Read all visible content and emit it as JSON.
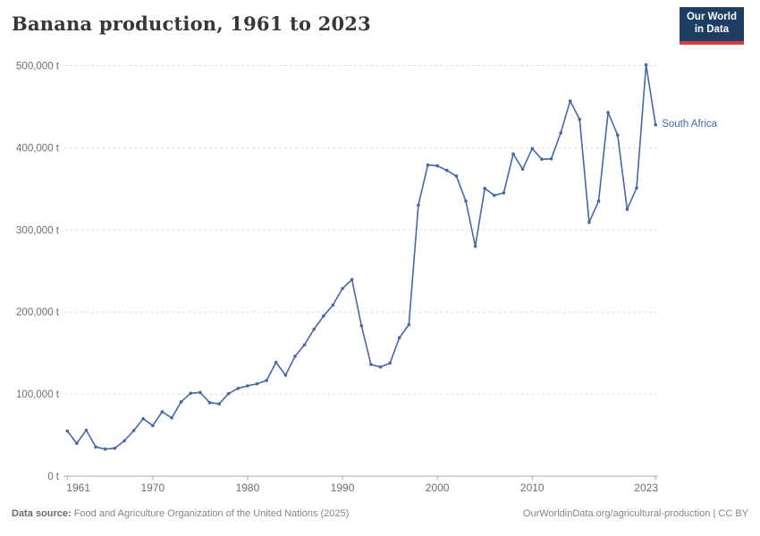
{
  "header": {
    "title": "Banana production, 1961 to 2023"
  },
  "logo": {
    "line1": "Our World",
    "line2": "in Data",
    "bg_color": "#1d3d63",
    "bar_color": "#d73c3c"
  },
  "chart_data": {
    "type": "line",
    "title": "Banana production, 1961 to 2023",
    "entity": "South Africa",
    "unit": "t",
    "line_color": "#4668a8",
    "grid": "horizontal-dashed",
    "legend_position": "end-of-line-label",
    "xlim": [
      1961,
      2023
    ],
    "ylim": [
      0,
      500000
    ],
    "x": [
      1961,
      1962,
      1963,
      1964,
      1965,
      1966,
      1967,
      1968,
      1969,
      1970,
      1971,
      1972,
      1973,
      1974,
      1975,
      1976,
      1977,
      1978,
      1979,
      1980,
      1981,
      1982,
      1983,
      1984,
      1985,
      1986,
      1987,
      1988,
      1989,
      1990,
      1991,
      1992,
      1993,
      1994,
      1995,
      1996,
      1997,
      1998,
      1999,
      2000,
      2001,
      2002,
      2003,
      2004,
      2005,
      2006,
      2007,
      2008,
      2009,
      2010,
      2011,
      2012,
      2013,
      2014,
      2015,
      2016,
      2017,
      2018,
      2019,
      2020,
      2021,
      2022,
      2023
    ],
    "values": [
      55000,
      40000,
      56000,
      35500,
      33000,
      34000,
      43000,
      55500,
      70000,
      61500,
      78500,
      71000,
      90500,
      101000,
      102000,
      89500,
      88000,
      100500,
      107000,
      110000,
      112500,
      116500,
      138500,
      123000,
      146000,
      160000,
      179000,
      195000,
      208500,
      228500,
      239500,
      183000,
      136000,
      133000,
      137500,
      168500,
      184500,
      330000,
      379000,
      378000,
      372500,
      365500,
      335000,
      280000,
      350500,
      342000,
      345000,
      392500,
      374000,
      399000,
      386000,
      386500,
      418000,
      457000,
      434500,
      309000,
      335000,
      443000,
      415500,
      325000,
      351000,
      501000,
      428000
    ],
    "y_ticks": [
      {
        "value": 0,
        "label": "0 t"
      },
      {
        "value": 100000,
        "label": "100,000 t"
      },
      {
        "value": 200000,
        "label": "200,000 t"
      },
      {
        "value": 300000,
        "label": "300,000 t"
      },
      {
        "value": 400000,
        "label": "400,000 t"
      },
      {
        "value": 500000,
        "label": "500,000 t"
      }
    ],
    "x_ticks": [
      {
        "value": 1961,
        "label": "1961"
      },
      {
        "value": 1970,
        "label": "1970"
      },
      {
        "value": 1980,
        "label": "1980"
      },
      {
        "value": 1990,
        "label": "1990"
      },
      {
        "value": 2000,
        "label": "2000"
      },
      {
        "value": 2010,
        "label": "2010"
      },
      {
        "value": 2023,
        "label": "2023"
      }
    ]
  },
  "footer": {
    "source_label": "Data source:",
    "source_text": " Food and Agriculture Organization of the United Nations (2025)",
    "credit": "OurWorldinData.org/agricultural-production | CC BY"
  }
}
